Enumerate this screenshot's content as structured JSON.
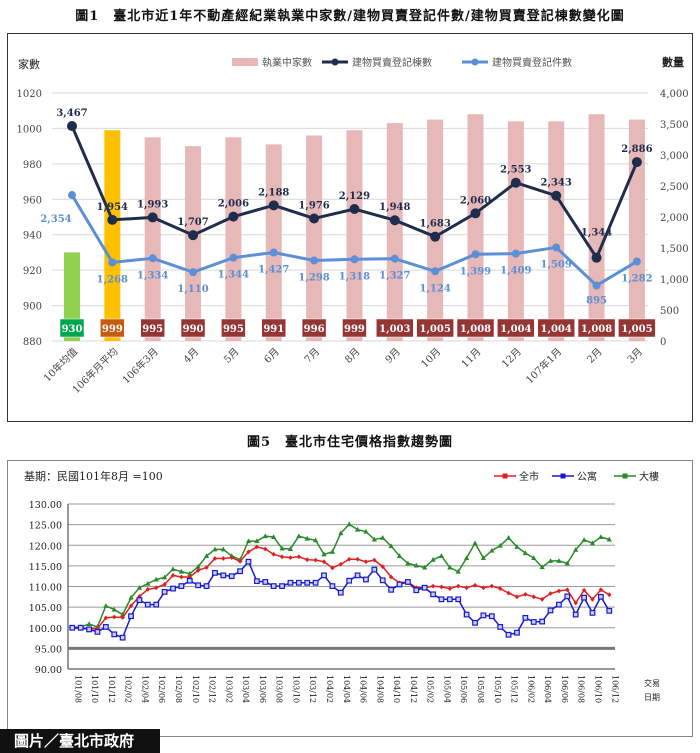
{
  "chart_data": [
    {
      "type": "bar+line",
      "title": "圖1　臺北市近1年不動產經紀業執業中家數/建物買賣登記件數/建物買賣登記棟數變化圖",
      "ylabel_left": "家數",
      "ylabel_right": "數量",
      "ylim_left": [
        880,
        1020
      ],
      "yticks_left": [
        880,
        900,
        920,
        940,
        960,
        980,
        1000,
        1020
      ],
      "ylim_right": [
        0,
        4000
      ],
      "yticks_right": [
        "0",
        "500",
        "1,000",
        "1,500",
        "2,000",
        "2,500",
        "3,000",
        "3,500",
        "4,000"
      ],
      "grid": true,
      "legend_position": "top",
      "categories": [
        "10年均值",
        "106年月平均",
        "106年3月",
        "4月",
        "5月",
        "6月",
        "7月",
        "8月",
        "9月",
        "10月",
        "11月",
        "12月",
        "107年1月",
        "2月",
        "3月"
      ],
      "series": [
        {
          "name": "執業中家數",
          "kind": "bar",
          "axis": "left",
          "color": "#e6b8b7",
          "values": [
            930,
            999,
            995,
            990,
            995,
            991,
            996,
            999,
            1003,
            1005,
            1008,
            1004,
            1004,
            1008,
            1005
          ],
          "labels": [
            "930",
            "999",
            "995",
            "990",
            "995",
            "991",
            "996",
            "999",
            "1,003",
            "1,005",
            "1,008",
            "1,004",
            "1,004",
            "1,008",
            "1,005"
          ]
        },
        {
          "name": "建物買賣登記棟數",
          "kind": "line",
          "axis": "right",
          "color": "#1f2d4d",
          "values": [
            3467,
            1954,
            1993,
            1707,
            2006,
            2188,
            1976,
            2129,
            1948,
            1683,
            2060,
            2553,
            2343,
            1344,
            2886
          ],
          "labels": [
            "3,467",
            "1,954",
            "1,993",
            "1,707",
            "2,006",
            "2,188",
            "1,976",
            "2,129",
            "1,948",
            "1,683",
            "2,060",
            "2,553",
            "2,343",
            "1,344",
            "2,886"
          ]
        },
        {
          "name": "建物買賣登記件數",
          "kind": "line",
          "axis": "right",
          "color": "#5b8fd6",
          "values": [
            2354,
            1268,
            1334,
            1110,
            1344,
            1427,
            1298,
            1318,
            1327,
            1124,
            1399,
            1409,
            1509,
            895,
            1282
          ],
          "labels": [
            "2,354",
            "1,268",
            "1,334",
            "1,110",
            "1,344",
            "1,427",
            "1,298",
            "1,318",
            "1,327",
            "1,124",
            "1,399",
            "1,409",
            "1,509",
            "895",
            "1,282"
          ]
        }
      ],
      "bar_colors": {
        "first": "#92d050",
        "second": "#ffc000",
        "rest": "#e6b8b7"
      },
      "label_box_colors": {
        "first": "#00a651",
        "second": "#c55a11",
        "rest": "#943634"
      }
    },
    {
      "type": "line",
      "title": "圖5　臺北市住宅價格指數趨勢圖",
      "note": "基期：民國101年8月 =100",
      "xlabel": [
        "交易",
        "日期"
      ],
      "ylim": [
        90,
        130
      ],
      "yticks": [
        "90.00",
        "95.00",
        "100.00",
        "105.00",
        "110.00",
        "115.00",
        "120.00",
        "125.00",
        "130.00"
      ],
      "grid": true,
      "legend_position": "top-right",
      "xticks": [
        "101/08",
        "101/10",
        "101/12",
        "102/02",
        "102/04",
        "102/06",
        "102/08",
        "102/10",
        "102/12",
        "103/02",
        "103/04",
        "103/06",
        "103/08",
        "103/10",
        "103/12",
        "104/02",
        "104/04",
        "104/06",
        "104/08",
        "104/10",
        "104/12",
        "105/02",
        "105/04",
        "105/06",
        "105/08",
        "105/10",
        "105/12",
        "106/02",
        "106/04",
        "106/06",
        "106/08",
        "106/10",
        "106/12"
      ],
      "x_start": "101/08",
      "x_end": "106/12",
      "x_step": "monthly",
      "series": [
        {
          "name": "全市",
          "color": "#e02020",
          "marker": "diamond",
          "values": [
            100,
            99.8,
            99.8,
            99.8,
            102.4,
            102.6,
            102.5,
            105.3,
            107.6,
            109.3,
            109.7,
            110.5,
            112.7,
            112.3,
            112.3,
            113.9,
            114.6,
            116.8,
            116.8,
            117,
            116.1,
            118.4,
            119.6,
            119.1,
            117.8,
            117.2,
            117,
            117.2,
            116.5,
            116.4,
            116,
            114.5,
            115.4,
            116.6,
            116.6,
            116.0,
            116.4,
            114.8,
            112.3,
            110.9,
            111.1,
            109.7,
            109.7,
            110.1,
            109.9,
            109.5,
            110.1,
            109.7,
            110.3,
            109.7,
            110.1,
            109.5,
            108.4,
            107.5,
            108.1,
            107.5,
            106.9,
            108.3,
            108.9,
            109.2,
            106.0,
            109.1,
            106.9,
            109.2,
            108.0
          ]
        },
        {
          "name": "公寓",
          "color": "#1a1acc",
          "marker": "square",
          "values": [
            100,
            100,
            99.6,
            99,
            100.2,
            98.4,
            97.6,
            102.8,
            106.7,
            105.6,
            105.6,
            108.7,
            109.5,
            110.1,
            111.4,
            110.3,
            110.1,
            113.3,
            112.7,
            112.5,
            113.7,
            116,
            111.3,
            111.1,
            110.1,
            110.1,
            110.9,
            110.9,
            110.9,
            110.9,
            112.7,
            110.1,
            108.5,
            111.4,
            112.7,
            111.7,
            114.1,
            111.5,
            109.2,
            110.5,
            111.1,
            109.1,
            109.7,
            108.1,
            106.9,
            106.9,
            106.9,
            103.2,
            101.2,
            103,
            102.8,
            100.2,
            98.3,
            98.8,
            102.4,
            101.4,
            101.5,
            104.2,
            105.6,
            107.6,
            103.2,
            107.3,
            103.6,
            107.5,
            104.1
          ]
        },
        {
          "name": "大樓",
          "color": "#2a8a2a",
          "marker": "triangle",
          "values": [
            100,
            100.2,
            100.9,
            100.2,
            105.3,
            104.4,
            103.2,
            107.3,
            109.7,
            110.7,
            111.7,
            112.2,
            114.2,
            113.6,
            113.1,
            114.8,
            117.4,
            119,
            119,
            117.4,
            116.5,
            121,
            121,
            122.2,
            122,
            119.2,
            119.1,
            122.2,
            121.6,
            121.2,
            117.8,
            118.4,
            122.9,
            125.1,
            123.8,
            123.3,
            121.4,
            121.8,
            119.8,
            117.4,
            115.6,
            115.1,
            114.6,
            116.5,
            117.4,
            114.6,
            113.6,
            116.9,
            120.5,
            116.9,
            118.7,
            119.9,
            121.8,
            119.6,
            118.1,
            116.9,
            114.7,
            116.2,
            116.2,
            115.6,
            118.9,
            121.3,
            120.5,
            122,
            121.4
          ]
        }
      ]
    }
  ],
  "footer": {
    "credit": "圖片／臺北市政府"
  }
}
